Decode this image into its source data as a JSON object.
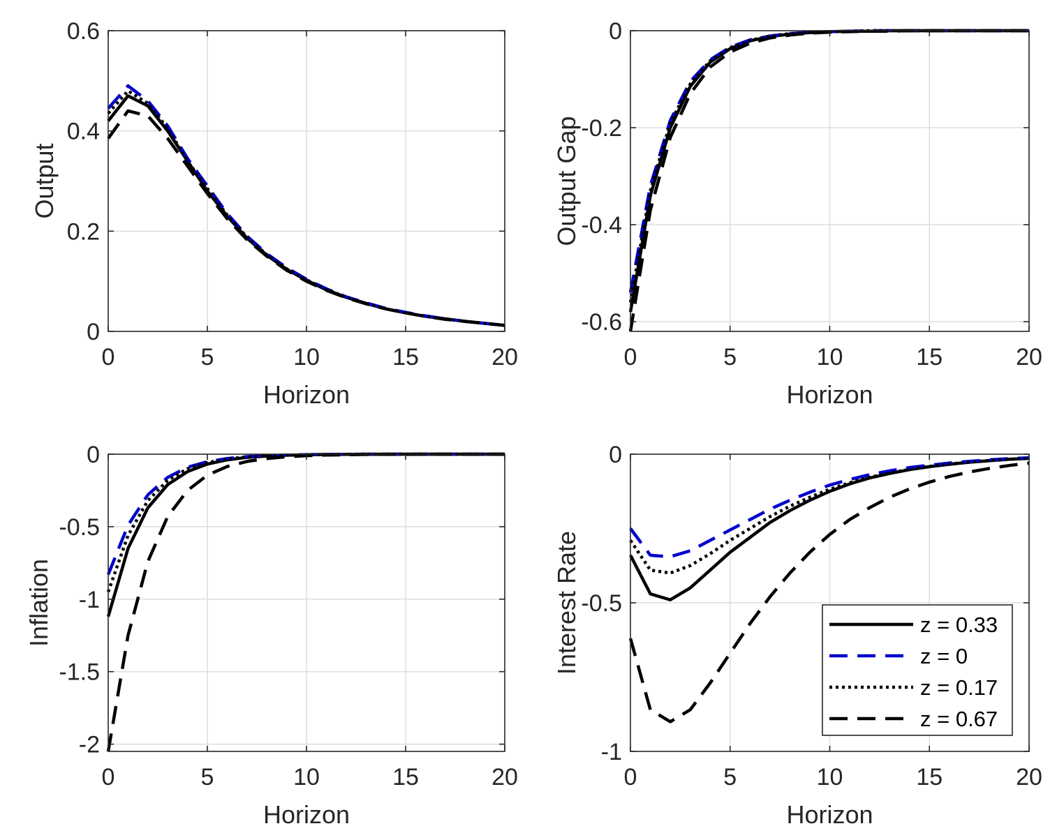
{
  "figure": {
    "colors": {
      "solid": "#000000",
      "blue": "#0000cc",
      "dotted": "#000000",
      "dashed": "#000000",
      "grid": "#dedede",
      "axis": "#262626"
    }
  },
  "chart_data": [
    {
      "type": "line",
      "id": "output",
      "title": "",
      "xlabel": "Horizon",
      "ylabel": "Output",
      "xlim": [
        0,
        20
      ],
      "ylim": [
        0,
        0.6
      ],
      "xticks": [
        0,
        5,
        10,
        15,
        20
      ],
      "yticks": [
        0,
        0.2,
        0.4,
        0.6
      ],
      "xtick_labels": [
        "0",
        "5",
        "10",
        "15",
        "20"
      ],
      "ytick_labels": [
        "0",
        "0.2",
        "0.4",
        "0.6"
      ],
      "grid": true,
      "x": [
        0,
        1,
        2,
        3,
        4,
        5,
        6,
        7,
        8,
        9,
        10,
        11,
        12,
        13,
        14,
        15,
        16,
        17,
        18,
        19,
        20
      ],
      "series": [
        {
          "name": "z = 0.33",
          "style": "solid",
          "values": [
            0.42,
            0.47,
            0.45,
            0.4,
            0.34,
            0.28,
            0.23,
            0.186,
            0.152,
            0.124,
            0.102,
            0.083,
            0.068,
            0.056,
            0.045,
            0.037,
            0.03,
            0.025,
            0.02,
            0.016,
            0.012
          ]
        },
        {
          "name": "z = 0",
          "style": "blue-dashed",
          "values": [
            0.445,
            0.49,
            0.46,
            0.41,
            0.345,
            0.29,
            0.235,
            0.19,
            0.155,
            0.127,
            0.104,
            0.085,
            0.069,
            0.057,
            0.046,
            0.038,
            0.031,
            0.025,
            0.02,
            0.016,
            0.012
          ]
        },
        {
          "name": "z = 0.17",
          "style": "dotted",
          "values": [
            0.435,
            0.48,
            0.455,
            0.405,
            0.34,
            0.285,
            0.232,
            0.188,
            0.153,
            0.125,
            0.103,
            0.084,
            0.068,
            0.056,
            0.045,
            0.037,
            0.03,
            0.025,
            0.02,
            0.016,
            0.012
          ]
        },
        {
          "name": "z = 0.67",
          "style": "dashed",
          "values": [
            0.385,
            0.44,
            0.43,
            0.385,
            0.33,
            0.275,
            0.225,
            0.183,
            0.15,
            0.122,
            0.1,
            0.082,
            0.067,
            0.055,
            0.045,
            0.037,
            0.03,
            0.024,
            0.02,
            0.016,
            0.012
          ]
        }
      ]
    },
    {
      "type": "line",
      "id": "output-gap",
      "title": "",
      "xlabel": "Horizon",
      "ylabel": "Output Gap",
      "xlim": [
        0,
        20
      ],
      "ylim": [
        -0.62,
        0
      ],
      "xticks": [
        0,
        5,
        10,
        15,
        20
      ],
      "yticks": [
        -0.6,
        -0.4,
        -0.2,
        0
      ],
      "xtick_labels": [
        "0",
        "5",
        "10",
        "15",
        "20"
      ],
      "ytick_labels": [
        "-0.6",
        "-0.4",
        "-0.2",
        "0"
      ],
      "grid": true,
      "x": [
        0,
        1,
        2,
        3,
        4,
        5,
        6,
        7,
        8,
        9,
        10,
        11,
        12,
        13,
        14,
        15,
        16,
        17,
        18,
        19,
        20
      ],
      "series": [
        {
          "name": "z = 0.33",
          "style": "solid",
          "values": [
            -0.58,
            -0.34,
            -0.2,
            -0.115,
            -0.065,
            -0.037,
            -0.021,
            -0.012,
            -0.007,
            -0.004,
            -0.002,
            -0.001,
            -0.001,
            0,
            0,
            0,
            0,
            0,
            0,
            0,
            0
          ]
        },
        {
          "name": "z = 0",
          "style": "blue-dashed",
          "values": [
            -0.54,
            -0.32,
            -0.185,
            -0.105,
            -0.06,
            -0.034,
            -0.019,
            -0.011,
            -0.006,
            -0.003,
            -0.002,
            -0.001,
            0,
            0,
            0,
            0,
            0,
            0,
            0,
            0,
            0
          ]
        },
        {
          "name": "z = 0.17",
          "style": "dotted",
          "values": [
            -0.56,
            -0.33,
            -0.19,
            -0.11,
            -0.062,
            -0.035,
            -0.02,
            -0.011,
            -0.006,
            -0.004,
            -0.002,
            -0.001,
            0,
            0,
            0,
            0,
            0,
            0,
            0,
            0,
            0
          ]
        },
        {
          "name": "z = 0.67",
          "style": "dashed",
          "values": [
            -0.62,
            -0.37,
            -0.22,
            -0.13,
            -0.075,
            -0.044,
            -0.026,
            -0.015,
            -0.009,
            -0.005,
            -0.003,
            -0.002,
            -0.001,
            -0.001,
            0,
            0,
            0,
            0,
            0,
            0,
            0
          ]
        }
      ]
    },
    {
      "type": "line",
      "id": "inflation",
      "title": "",
      "xlabel": "Horizon",
      "ylabel": "Inflation",
      "xlim": [
        0,
        20
      ],
      "ylim": [
        -2.05,
        0
      ],
      "xticks": [
        0,
        5,
        10,
        15,
        20
      ],
      "yticks": [
        -2,
        -1.5,
        -1,
        -0.5,
        0
      ],
      "xtick_labels": [
        "0",
        "5",
        "10",
        "15",
        "20"
      ],
      "ytick_labels": [
        "-2",
        "-1.5",
        "-1",
        "-0.5",
        "0"
      ],
      "grid": true,
      "x": [
        0,
        1,
        2,
        3,
        4,
        5,
        6,
        7,
        8,
        9,
        10,
        11,
        12,
        13,
        14,
        15,
        16,
        17,
        18,
        19,
        20
      ],
      "series": [
        {
          "name": "z = 0.33",
          "style": "solid",
          "values": [
            -1.12,
            -0.65,
            -0.37,
            -0.21,
            -0.12,
            -0.068,
            -0.039,
            -0.022,
            -0.013,
            -0.007,
            -0.004,
            -0.002,
            -0.001,
            -0.001,
            0,
            0,
            0,
            0,
            0,
            0,
            0
          ]
        },
        {
          "name": "z = 0",
          "style": "blue-dashed",
          "values": [
            -0.83,
            -0.49,
            -0.28,
            -0.16,
            -0.09,
            -0.052,
            -0.03,
            -0.017,
            -0.01,
            -0.006,
            -0.003,
            -0.002,
            -0.001,
            0,
            0,
            0,
            0,
            0,
            0,
            0,
            0
          ]
        },
        {
          "name": "z = 0.17",
          "style": "dotted",
          "values": [
            -0.95,
            -0.56,
            -0.32,
            -0.18,
            -0.1,
            -0.058,
            -0.033,
            -0.019,
            -0.011,
            -0.006,
            -0.004,
            -0.002,
            -0.001,
            0,
            0,
            0,
            0,
            0,
            0,
            0,
            0
          ]
        },
        {
          "name": "z = 0.67",
          "style": "dashed",
          "values": [
            -2.05,
            -1.25,
            -0.74,
            -0.43,
            -0.25,
            -0.145,
            -0.085,
            -0.05,
            -0.03,
            -0.018,
            -0.01,
            -0.006,
            -0.004,
            -0.002,
            -0.001,
            -0.001,
            0,
            0,
            0,
            0,
            0
          ]
        }
      ]
    },
    {
      "type": "line",
      "id": "interest-rate",
      "title": "",
      "xlabel": "Horizon",
      "ylabel": "Interest Rate",
      "xlim": [
        0,
        20
      ],
      "ylim": [
        -1,
        0
      ],
      "xticks": [
        0,
        5,
        10,
        15,
        20
      ],
      "yticks": [
        -1,
        -0.5,
        0
      ],
      "xtick_labels": [
        "0",
        "5",
        "10",
        "15",
        "20"
      ],
      "ytick_labels": [
        "-1",
        "-0.5",
        "0"
      ],
      "grid": true,
      "legend": "inside-bottom-right",
      "x": [
        0,
        1,
        2,
        3,
        4,
        5,
        6,
        7,
        8,
        9,
        10,
        11,
        12,
        13,
        14,
        15,
        16,
        17,
        18,
        19,
        20
      ],
      "series": [
        {
          "name": "z = 0.33",
          "style": "solid",
          "values": [
            -0.34,
            -0.47,
            -0.49,
            -0.45,
            -0.39,
            -0.33,
            -0.28,
            -0.23,
            -0.19,
            -0.155,
            -0.125,
            -0.1,
            -0.08,
            -0.065,
            -0.052,
            -0.042,
            -0.034,
            -0.027,
            -0.022,
            -0.017,
            -0.014
          ]
        },
        {
          "name": "z = 0",
          "style": "blue-dashed",
          "values": [
            -0.25,
            -0.34,
            -0.345,
            -0.325,
            -0.29,
            -0.255,
            -0.22,
            -0.185,
            -0.155,
            -0.128,
            -0.104,
            -0.085,
            -0.069,
            -0.056,
            -0.045,
            -0.037,
            -0.03,
            -0.024,
            -0.019,
            -0.015,
            -0.012
          ]
        },
        {
          "name": "z = 0.17",
          "style": "dotted",
          "values": [
            -0.29,
            -0.39,
            -0.4,
            -0.375,
            -0.335,
            -0.29,
            -0.25,
            -0.21,
            -0.175,
            -0.145,
            -0.118,
            -0.096,
            -0.078,
            -0.063,
            -0.051,
            -0.041,
            -0.033,
            -0.027,
            -0.021,
            -0.017,
            -0.014
          ]
        },
        {
          "name": "z = 0.67",
          "style": "dashed",
          "values": [
            -0.62,
            -0.86,
            -0.9,
            -0.86,
            -0.77,
            -0.67,
            -0.57,
            -0.48,
            -0.4,
            -0.33,
            -0.27,
            -0.22,
            -0.18,
            -0.145,
            -0.117,
            -0.094,
            -0.075,
            -0.06,
            -0.048,
            -0.038,
            -0.03
          ]
        }
      ]
    }
  ]
}
